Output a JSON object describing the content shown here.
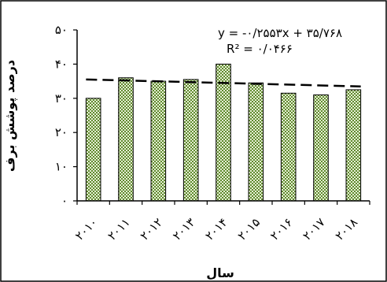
{
  "chart_data": {
    "type": "bar",
    "categories": [
      "۲۰۱۰",
      "۲۰۱۱",
      "۲۰۱۲",
      "۲۰۱۳",
      "۲۰۱۴",
      "۲۰۱۵",
      "۲۰۱۶",
      "۲۰۱۷",
      "۲۰۱۸"
    ],
    "values": [
      30,
      36,
      35,
      35.5,
      40,
      34.5,
      31.5,
      31,
      32.5
    ],
    "xlabel": "سال",
    "ylabel": "درصد پوشش برف",
    "ylim": [
      0,
      50
    ],
    "yticks": [
      0,
      10,
      20,
      30,
      40,
      50
    ],
    "ytick_labels": [
      "۰",
      "۱۰",
      "۲۰",
      "۳۰",
      "۴۰",
      "۵۰"
    ],
    "trendline": {
      "type": "linear",
      "slope": -0.2553,
      "intercept": 35.768,
      "style": "dashed",
      "equation": "y = -۰/۲۵۵۳x + ۳۵/۷۶۸",
      "r_squared": "R² = ۰/۰۴۶۶"
    },
    "grid": false,
    "legend": "none",
    "bar_fill": "#7fa04c",
    "bar_stroke": "#000000",
    "border_color": "#000000"
  }
}
